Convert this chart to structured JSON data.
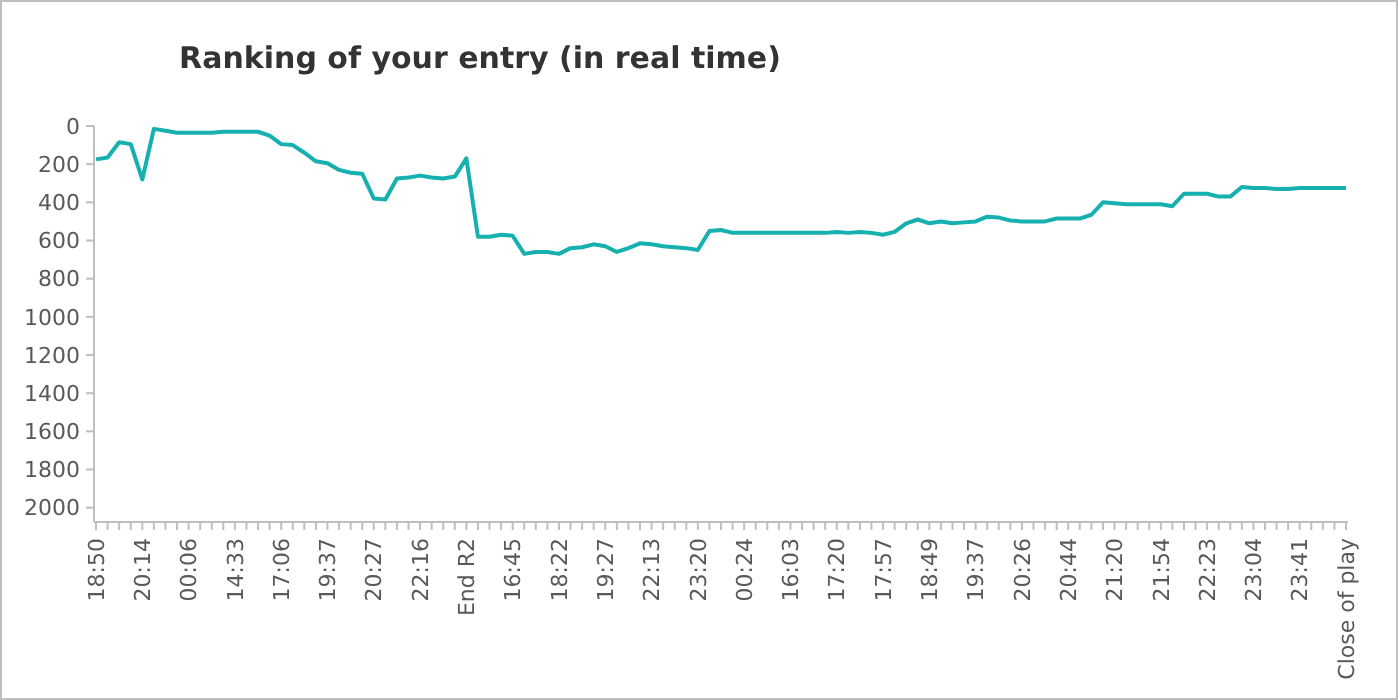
{
  "chart_data": {
    "type": "line",
    "title": "Ranking of your entry (in real time)",
    "categories": [
      "18:50",
      null,
      null,
      null,
      "20:14",
      null,
      null,
      null,
      "00:06",
      null,
      null,
      null,
      "14:33",
      null,
      null,
      null,
      "17:06",
      null,
      null,
      null,
      "19:37",
      null,
      null,
      null,
      "20:27",
      null,
      null,
      null,
      "22:16",
      null,
      null,
      null,
      "End R2",
      null,
      null,
      null,
      "16:45",
      null,
      null,
      null,
      "18:22",
      null,
      null,
      null,
      "19:27",
      null,
      null,
      null,
      "22:13",
      null,
      null,
      null,
      "23:20",
      null,
      null,
      null,
      "00:24",
      null,
      null,
      null,
      "16:03",
      null,
      null,
      null,
      "17:20",
      null,
      null,
      null,
      "17:57",
      null,
      null,
      null,
      "18:49",
      null,
      null,
      null,
      "19:37",
      null,
      null,
      null,
      "20:26",
      null,
      null,
      null,
      "20:44",
      null,
      null,
      null,
      "21:20",
      null,
      null,
      null,
      "21:54",
      null,
      null,
      null,
      "22:23",
      null,
      null,
      null,
      "23:04",
      null,
      null,
      null,
      "23:41",
      null,
      null,
      null,
      "Close of play"
    ],
    "series": [
      {
        "color": "#17b0b0",
        "values": [
          175,
          165,
          85,
          95,
          280,
          15,
          25,
          35,
          35,
          35,
          35,
          30,
          30,
          30,
          30,
          50,
          95,
          100,
          140,
          185,
          195,
          230,
          245,
          250,
          380,
          385,
          275,
          270,
          260,
          270,
          275,
          265,
          170,
          580,
          580,
          570,
          575,
          670,
          660,
          660,
          670,
          640,
          635,
          620,
          630,
          660,
          640,
          615,
          620,
          630,
          635,
          640,
          650,
          550,
          545,
          560,
          560,
          560,
          560,
          560,
          560,
          560,
          560,
          560,
          555,
          560,
          555,
          560,
          570,
          555,
          510,
          490,
          510,
          500,
          510,
          505,
          500,
          475,
          480,
          495,
          500,
          500,
          500,
          485,
          485,
          485,
          465,
          400,
          405,
          410,
          410,
          410,
          410,
          420,
          355,
          355,
          355,
          370,
          370,
          320,
          325,
          325,
          330,
          330,
          325,
          325,
          325,
          325,
          325
        ]
      }
    ],
    "ylim": [
      2075,
      0
    ],
    "yticks": [
      0,
      200,
      400,
      600,
      800,
      1000,
      1200,
      1400,
      1600,
      1800,
      2000
    ],
    "grid": false,
    "marker": "none",
    "line_style": "solid"
  }
}
